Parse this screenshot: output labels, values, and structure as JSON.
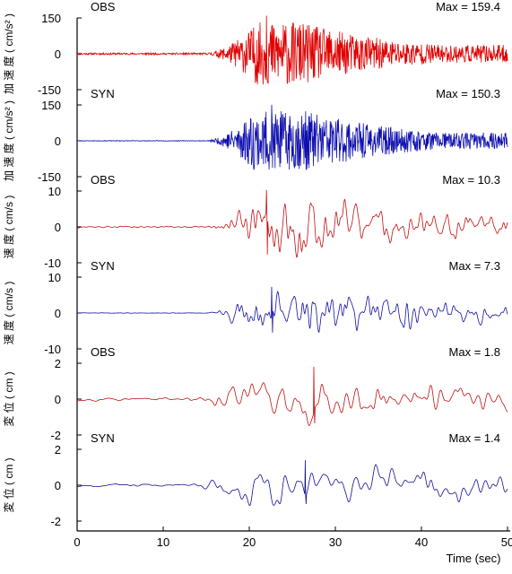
{
  "chart_data": {
    "type": "line",
    "xlabel": "Time (sec)",
    "xlim": [
      0,
      50
    ],
    "x_ticks": [
      "0",
      "10",
      "20",
      "30",
      "40",
      "50"
    ],
    "x_tick_values": [
      0,
      10,
      20,
      30,
      40,
      50
    ],
    "panels": [
      {
        "series_label": "OBS",
        "max_label": "Max = 159.4",
        "ylabel": "加 速 度 ( cm/s² )",
        "ylim": [
          -150,
          150
        ],
        "y_ticks": [
          "150",
          "0",
          "-150"
        ],
        "y_tick_values": [
          150,
          0,
          -150
        ],
        "color": "#e00000",
        "seed": 11,
        "amp": 159.4,
        "smooth": 0,
        "env": {
          "onset": 15,
          "t1": 21,
          "t2": 26,
          "decay": 13,
          "peakX": 22.0,
          "noise": 0.03
        }
      },
      {
        "series_label": "SYN",
        "max_label": "Max = 150.3",
        "ylabel": "加 速 度 ( cm/s² )",
        "ylim": [
          -150,
          150
        ],
        "y_ticks": [
          "150",
          "0",
          "-150"
        ],
        "y_tick_values": [
          150,
          0,
          -150
        ],
        "color": "#1010b0",
        "seed": 23,
        "amp": 150.3,
        "smooth": 0,
        "env": {
          "onset": 15,
          "t1": 20.5,
          "t2": 27,
          "decay": 12,
          "peakX": 22.6,
          "noise": 0.01
        }
      },
      {
        "series_label": "OBS",
        "max_label": "Max = 10.3",
        "ylabel": "速 度 ( cm/s )",
        "ylim": [
          -10,
          10
        ],
        "y_ticks": [
          "10",
          "0",
          "-10"
        ],
        "y_tick_values": [
          10,
          0,
          -10
        ],
        "color": "#c01010",
        "seed": 37,
        "amp": 10.3,
        "smooth": 3,
        "env": {
          "onset": 15,
          "t1": 20.5,
          "t2": 27,
          "decay": 20,
          "peakX": 22.0,
          "noise": 0.03
        }
      },
      {
        "series_label": "SYN",
        "max_label": "Max = 7.3",
        "ylabel": "速 度 ( cm/s )",
        "ylim": [
          -10,
          10
        ],
        "y_ticks": [
          "10",
          "0",
          "-10"
        ],
        "y_tick_values": [
          10,
          0,
          -10
        ],
        "color": "#1010a0",
        "seed": 41,
        "amp": 7.3,
        "smooth": 3,
        "env": {
          "onset": 15,
          "t1": 20.5,
          "t2": 27,
          "decay": 18,
          "peakX": 22.6,
          "noise": 0.01
        }
      },
      {
        "series_label": "OBS",
        "max_label": "Max = 1.8",
        "ylabel": "変 位 ( cm )",
        "ylim": [
          -2,
          2
        ],
        "y_ticks": [
          "2",
          "0",
          "-2"
        ],
        "y_tick_values": [
          2,
          0,
          -2
        ],
        "color": "#c01010",
        "seed": 53,
        "amp": 1.8,
        "smooth": 9,
        "env": {
          "onset": 12,
          "t1": 19.5,
          "t2": 30,
          "decay": 40,
          "peakX": 27.5,
          "noise": 0.08
        }
      },
      {
        "series_label": "SYN",
        "max_label": "Max = 1.4",
        "ylabel": "変 位 ( cm )",
        "ylim": [
          -2,
          2
        ],
        "y_ticks": [
          "2",
          "0",
          "-2"
        ],
        "y_tick_values": [
          2,
          0,
          -2
        ],
        "color": "#101090",
        "seed": 67,
        "amp": 1.4,
        "smooth": 9,
        "env": {
          "onset": 12,
          "t1": 19.5,
          "t2": 30,
          "decay": 40,
          "peakX": 26.5,
          "noise": 0.08
        }
      }
    ]
  }
}
